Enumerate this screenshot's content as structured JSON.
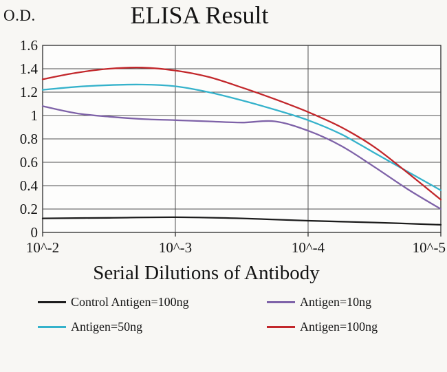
{
  "chart_data": {
    "type": "line",
    "title": "ELISA Result",
    "ylabel": "O.D.",
    "xlabel": "Serial Dilutions of Antibody",
    "x_tick_labels": [
      "10^-2",
      "10^-3",
      "10^-4",
      "10^-5"
    ],
    "y_tick_labels": [
      "0",
      "0.2",
      "0.4",
      "0.6",
      "0.8",
      "1",
      "1.2",
      "1.4",
      "1.6"
    ],
    "ylim": [
      0,
      1.6
    ],
    "x_axis_scale": "log, one decade per tick",
    "grid": true,
    "legend_position": "bottom",
    "colors": {
      "background": "#f8f7f4",
      "plot_bg": "#fdfdfc",
      "grid": "#4f4f4f",
      "axis": "#2b2b2b",
      "text": "#141414"
    },
    "series": [
      {
        "key": "control-antigen-100ng",
        "name": "Control Antigen=100ng",
        "color": "#1c1c1c",
        "x": [
          0,
          0.5,
          1,
          1.5,
          2,
          2.5,
          3
        ],
        "values": [
          0.12,
          0.125,
          0.13,
          0.12,
          0.1,
          0.085,
          0.065
        ]
      },
      {
        "key": "antigen-10ng",
        "name": "Antigen=10ng",
        "color": "#7e62a8",
        "x": [
          0,
          0.25,
          0.5,
          0.75,
          1,
          1.25,
          1.5,
          1.75,
          2,
          2.25,
          2.5,
          2.75,
          3
        ],
        "values": [
          1.08,
          1.02,
          0.99,
          0.97,
          0.96,
          0.95,
          0.94,
          0.95,
          0.87,
          0.74,
          0.56,
          0.37,
          0.2
        ]
      },
      {
        "key": "antigen-50ng",
        "name": "Antigen=50ng",
        "color": "#35b2cb",
        "x": [
          0,
          0.25,
          0.5,
          0.75,
          1,
          1.25,
          1.5,
          1.75,
          2,
          2.25,
          2.5,
          2.75,
          3
        ],
        "values": [
          1.22,
          1.245,
          1.26,
          1.265,
          1.25,
          1.2,
          1.13,
          1.05,
          0.96,
          0.84,
          0.68,
          0.52,
          0.36
        ]
      },
      {
        "key": "antigen-100ng",
        "name": "Antigen=100ng",
        "color": "#c2272b",
        "x": [
          0,
          0.25,
          0.5,
          0.75,
          1,
          1.25,
          1.5,
          1.75,
          2,
          2.25,
          2.5,
          2.75,
          3
        ],
        "values": [
          1.31,
          1.365,
          1.4,
          1.41,
          1.385,
          1.33,
          1.24,
          1.14,
          1.03,
          0.9,
          0.73,
          0.51,
          0.28
        ]
      }
    ]
  }
}
